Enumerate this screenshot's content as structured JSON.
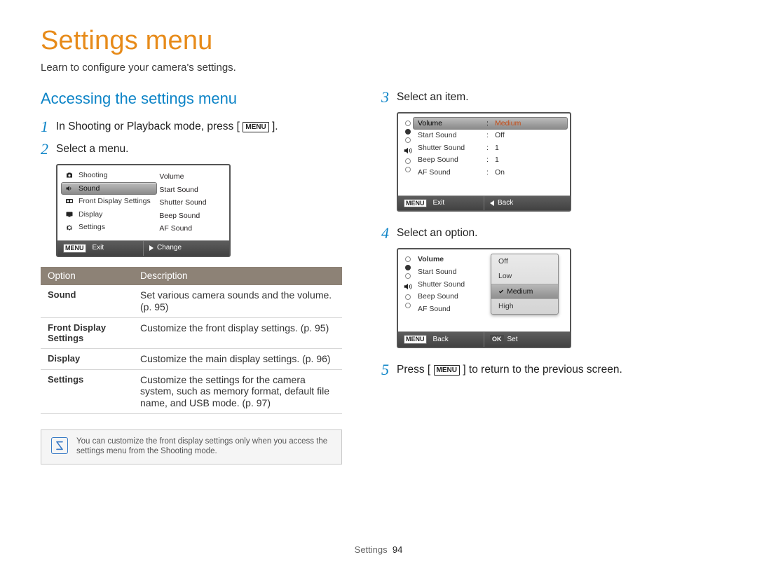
{
  "page": {
    "title": "Settings menu",
    "subtitle": "Learn to configure your camera's settings.",
    "section_header": "Accessing the settings menu",
    "footer_section": "Settings",
    "footer_page": "94"
  },
  "colors": {
    "title": "#e78b1a",
    "section": "#0d84c7",
    "table_header_bg": "#8d8276",
    "note_border": "#c9c9c9",
    "note_icon": "#3a7bc6",
    "highlight_value": "#c64a13"
  },
  "steps": {
    "s1a": "In Shooting or Playback mode, press [",
    "s1b": "].",
    "menu_label": "MENU",
    "s2": "Select a menu.",
    "s3": "Select an item.",
    "s4": "Select an option.",
    "s5a": "Press [",
    "s5b": "] to return to the previous screen."
  },
  "lcd1": {
    "left": [
      {
        "label": "Shooting",
        "icon": "camera",
        "sel": false
      },
      {
        "label": "Sound",
        "icon": "speaker",
        "sel": true
      },
      {
        "label": "Front Display Settings",
        "icon": "front",
        "sel": false
      },
      {
        "label": "Display",
        "icon": "display",
        "sel": false
      },
      {
        "label": "Settings",
        "icon": "gear",
        "sel": false
      }
    ],
    "right": [
      "Volume",
      "Start Sound",
      "Shutter Sound",
      "Beep Sound",
      "AF Sound"
    ],
    "bar_left_label": "Exit",
    "bar_right_label": "Change"
  },
  "lcd3": {
    "rows": [
      {
        "k": "Volume",
        "v": "Medium",
        "hi": true
      },
      {
        "k": "Start Sound",
        "v": "Off",
        "hi": false
      },
      {
        "k": "Shutter Sound",
        "v": "1",
        "hi": false
      },
      {
        "k": "Beep Sound",
        "v": "1",
        "hi": false
      },
      {
        "k": "AF Sound",
        "v": "On",
        "hi": false
      }
    ],
    "bar_left_label": "Exit",
    "bar_right_label": "Back"
  },
  "lcd4": {
    "rows": [
      {
        "k": "Volume",
        "bold": true
      },
      {
        "k": "Start Sound",
        "bold": false
      },
      {
        "k": "Shutter Sound",
        "bold": false
      },
      {
        "k": "Beep Sound",
        "bold": false
      },
      {
        "k": "AF Sound",
        "bold": false
      }
    ],
    "popup": [
      "Off",
      "Low",
      "Medium",
      "High"
    ],
    "popup_selected_index": 2,
    "bar_left_label": "Back",
    "bar_right_label": "Set",
    "bar_right_badge": "OK"
  },
  "table": {
    "header_option": "Option",
    "header_desc": "Description",
    "rows": [
      {
        "opt": "Sound",
        "desc": "Set various camera sounds and the volume. (p. 95)"
      },
      {
        "opt": "Front Display Settings",
        "desc": "Customize the front display settings. (p. 95)"
      },
      {
        "opt": "Display",
        "desc": "Customize the main display settings. (p. 96)"
      },
      {
        "opt": "Settings",
        "desc": "Customize the settings for the camera system, such as memory format, default file name, and USB mode. (p. 97)"
      }
    ]
  },
  "note": {
    "text": "You can customize the front display settings only when you access the settings menu from the Shooting mode."
  }
}
